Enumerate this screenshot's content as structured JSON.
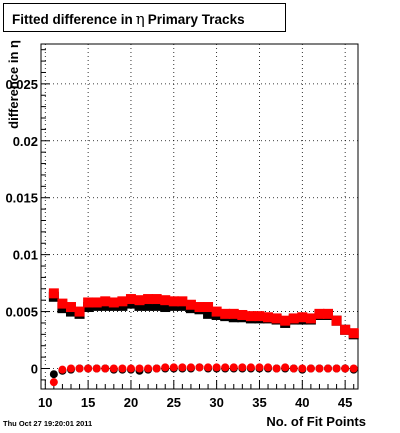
{
  "title": {
    "prefix": "Fitted difference in",
    "symbol": "η",
    "suffix": "Primary Tracks"
  },
  "timestamp": "Thu Oct 27 19:20:01 2011",
  "chart_data": {
    "type": "scatter",
    "title": "Fitted difference in η Primary Tracks",
    "xlabel": "No. of Fit Points",
    "ylabel": "difference in η",
    "xlim": [
      9.5,
      46.5
    ],
    "ylim": [
      -0.0018,
      0.0285
    ],
    "xticks": [
      10,
      15,
      20,
      25,
      30,
      35,
      40,
      45
    ],
    "xtick_labels": [
      "10",
      "15",
      "20",
      "25",
      "30",
      "35",
      "40",
      "45"
    ],
    "yticks": [
      0,
      0.005,
      0.01,
      0.015,
      0.02,
      0.025
    ],
    "ytick_labels": [
      "0",
      "0.005",
      "0.01",
      "0.015",
      "0.02",
      "0.025"
    ],
    "grid": true,
    "series": [
      {
        "marker": "square",
        "color": "#000000",
        "x": [
          11,
          12,
          13,
          14,
          15,
          16,
          17,
          18,
          19,
          20,
          21,
          22,
          23,
          24,
          25,
          26,
          27,
          28,
          29,
          30,
          31,
          32,
          33,
          34,
          35,
          36,
          37,
          38,
          39,
          40,
          41,
          42,
          43,
          44,
          45,
          46
        ],
        "y": [
          0.0063,
          0.0053,
          0.005,
          0.0048,
          0.0054,
          0.0055,
          0.0055,
          0.0055,
          0.0055,
          0.0057,
          0.0055,
          0.0055,
          0.0055,
          0.0054,
          0.0055,
          0.0055,
          0.0053,
          0.0052,
          0.0048,
          0.0047,
          0.0046,
          0.0045,
          0.0045,
          0.0044,
          0.0044,
          0.0044,
          0.0043,
          0.004,
          0.0043,
          0.0043,
          0.0043,
          0.0047,
          0.0047,
          0.0042,
          0.0034,
          0.003
        ]
      },
      {
        "marker": "square",
        "color": "#ff0000",
        "x": [
          11,
          12,
          13,
          14,
          15,
          16,
          17,
          18,
          19,
          20,
          21,
          22,
          23,
          24,
          25,
          26,
          27,
          28,
          29,
          30,
          31,
          32,
          33,
          34,
          35,
          36,
          37,
          38,
          39,
          40,
          41,
          42,
          43,
          44,
          45,
          46
        ],
        "y": [
          0.0066,
          0.0057,
          0.0054,
          0.005,
          0.0058,
          0.0058,
          0.0059,
          0.0058,
          0.0059,
          0.0061,
          0.006,
          0.0061,
          0.0061,
          0.006,
          0.0059,
          0.0059,
          0.0056,
          0.0054,
          0.0054,
          0.005,
          0.0048,
          0.0048,
          0.0047,
          0.0046,
          0.0046,
          0.0045,
          0.0044,
          0.0042,
          0.0044,
          0.0045,
          0.0044,
          0.0048,
          0.0048,
          0.0042,
          0.0034,
          0.0031
        ]
      },
      {
        "marker": "circle",
        "color": "#000000",
        "x": [
          11,
          12,
          13,
          14,
          15,
          16,
          17,
          18,
          19,
          20,
          21,
          22,
          23,
          24,
          25,
          26,
          27,
          28,
          29,
          30,
          31,
          32,
          33,
          34,
          35,
          36,
          37,
          38,
          39,
          40,
          41,
          42,
          43,
          44,
          45,
          46
        ],
        "y": [
          -0.0005,
          -0.0002,
          -0.0001,
          0,
          0,
          0,
          0,
          -0.0001,
          -0.0001,
          -0.0001,
          -0.0002,
          -0.0001,
          0,
          0,
          0,
          0,
          0,
          0.0001,
          0,
          0,
          0,
          0,
          0,
          0,
          0,
          0,
          0,
          0,
          0,
          -0.0001,
          0,
          0,
          0,
          0,
          0,
          -0.0001
        ]
      },
      {
        "marker": "circle",
        "color": "#ff0000",
        "x": [
          11,
          12,
          13,
          14,
          15,
          16,
          17,
          18,
          19,
          20,
          21,
          22,
          23,
          24,
          25,
          26,
          27,
          28,
          29,
          30,
          31,
          32,
          33,
          34,
          35,
          36,
          37,
          38,
          39,
          40,
          41,
          42,
          43,
          44,
          45,
          46
        ],
        "y": [
          -0.0012,
          -0.0001,
          0,
          0,
          0,
          0,
          0,
          0,
          0,
          0,
          0,
          0,
          0,
          0.0001,
          0.0001,
          0.0001,
          0.0001,
          0.0001,
          0.0001,
          0.0001,
          0.0001,
          0.0001,
          0.0001,
          0.0001,
          0.0001,
          0.0001,
          0,
          0.0001,
          0,
          0,
          0,
          0,
          0,
          0,
          0,
          0
        ]
      }
    ]
  }
}
